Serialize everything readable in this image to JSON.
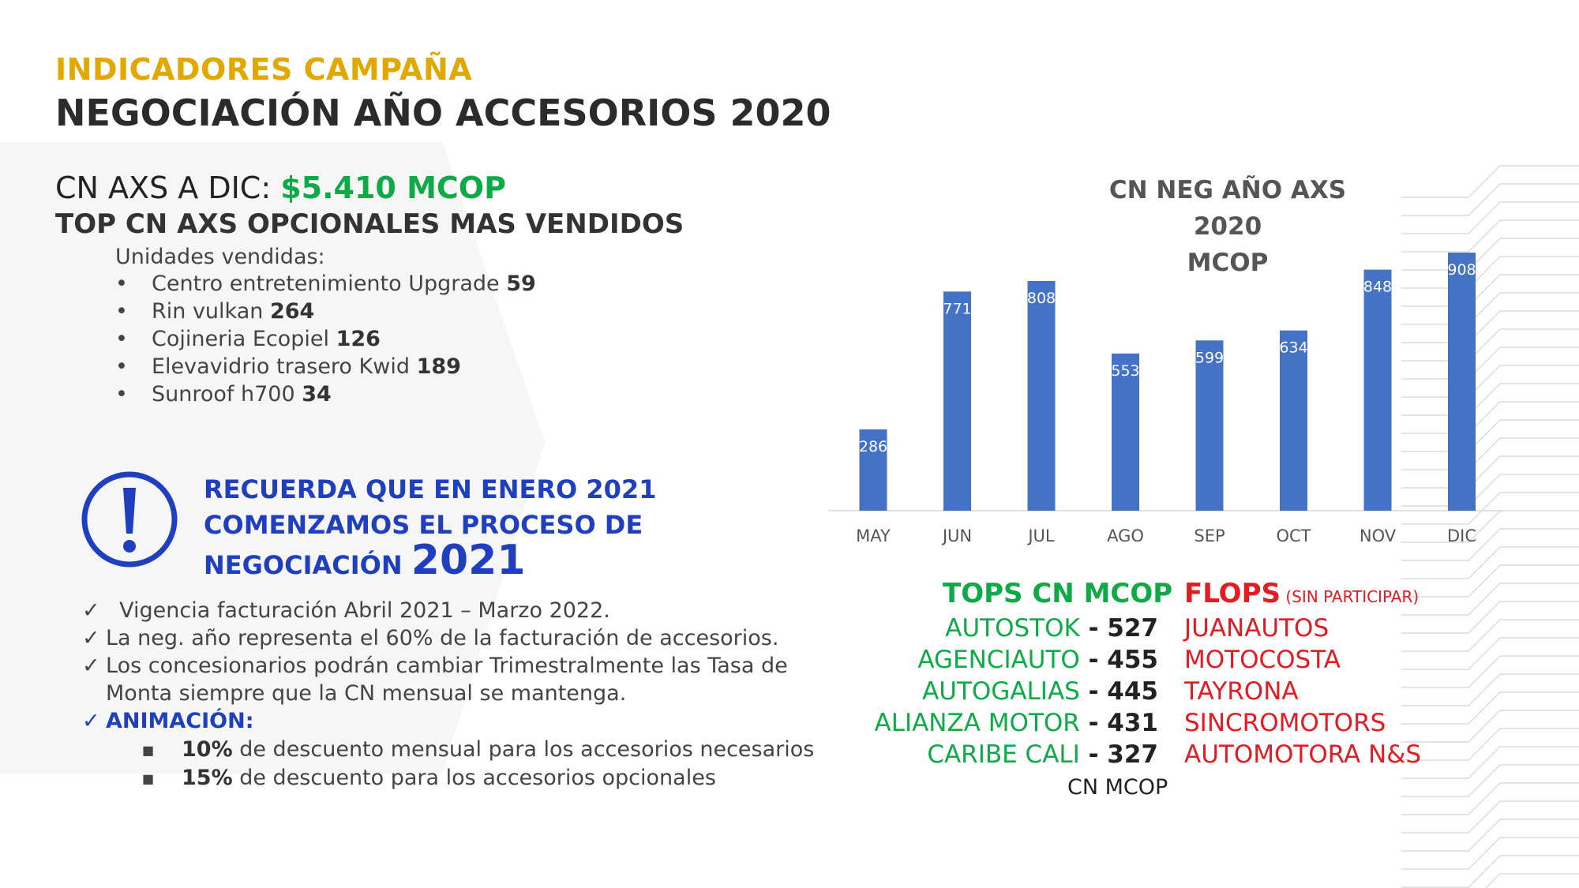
{
  "header": {
    "subtitle": "INDICADORES CAMPAÑA",
    "title": "NEGOCIACIÓN AÑO ACCESORIOS 2020"
  },
  "summary": {
    "cn_label": "CN AXS A DIC: ",
    "cn_value": "$5.410 MCOP",
    "top_title": "TOP CN AXS OPCIONALES MAS VENDIDOS",
    "units_label": "Unidades vendidas:",
    "products": [
      {
        "name": "Centro entretenimiento Upgrade ",
        "units": "59"
      },
      {
        "name": "Rin vulkan ",
        "units": "264"
      },
      {
        "name": "Cojineria Ecopiel  ",
        "units": "126"
      },
      {
        "name": "Elevavidrio trasero Kwid  ",
        "units": "189"
      },
      {
        "name": "Sunroof h700  ",
        "units": "34"
      }
    ],
    "bullet": "•"
  },
  "notice": {
    "icon": "exclamation-circle-icon",
    "color": "#1f3fbf",
    "line1": "RECUERDA QUE EN ENERO 2021",
    "line2": "COMENZAMOS EL PROCESO DE",
    "line3a": "NEGOCIACIÓN ",
    "line3b": "2021",
    "check_mark": "✓",
    "checks": [
      "  Vigencia facturación Abril 2021 – Marzo 2022.",
      "La neg. año representa el 60% de la facturación de accesorios.",
      "Los concesionarios podrán cambiar Trimestralmente las Tasa de",
      "Monta siempre que la CN mensual se mantenga."
    ],
    "animacion_label": "ANIMACIÓN:",
    "square_bullet": "■",
    "discounts": [
      {
        "pct": "10%",
        "text": " de descuento mensual para los accesorios necesarios"
      },
      {
        "pct": "15%",
        "text": " de descuento para los accesorios opcionales"
      }
    ]
  },
  "chart_data": {
    "type": "bar",
    "title": "CN NEG AÑO AXS 2020",
    "subtitle": "MCOP",
    "categories": [
      "MAY",
      "JUN",
      "JUL",
      "AGO",
      "SEP",
      "OCT",
      "NOV",
      "DIC"
    ],
    "values": [
      286,
      771,
      808,
      553,
      599,
      634,
      848,
      908
    ],
    "ylim": [
      0,
      908
    ],
    "bar_color": "#4472c4",
    "data_labels": true,
    "grid": false,
    "legend": "none"
  },
  "rankings": {
    "tops_title": "TOPS CN MCOP",
    "tops_color": "#0faa48",
    "tops": [
      {
        "name": "AUTOSTOK",
        "value": " - 527"
      },
      {
        "name": "AGENCIAUTO",
        "value": " - 455"
      },
      {
        "name": "AUTOGALIAS",
        "value": " - 445"
      },
      {
        "name": "ALIANZA MOTOR",
        "value": " - 431"
      },
      {
        "name": "CARIBE CALI",
        "value": " - 327"
      }
    ],
    "flops_title": "FLOPS",
    "flops_note": " (SIN PARTICIPAR)",
    "flops_color": "#e31b23",
    "flops": [
      "JUANAUTOS",
      "MOTOCOSTA",
      "TAYRONA",
      "SINCROMOTORS",
      "AUTOMOTORA N&S"
    ],
    "footer": "CN MCOP"
  }
}
